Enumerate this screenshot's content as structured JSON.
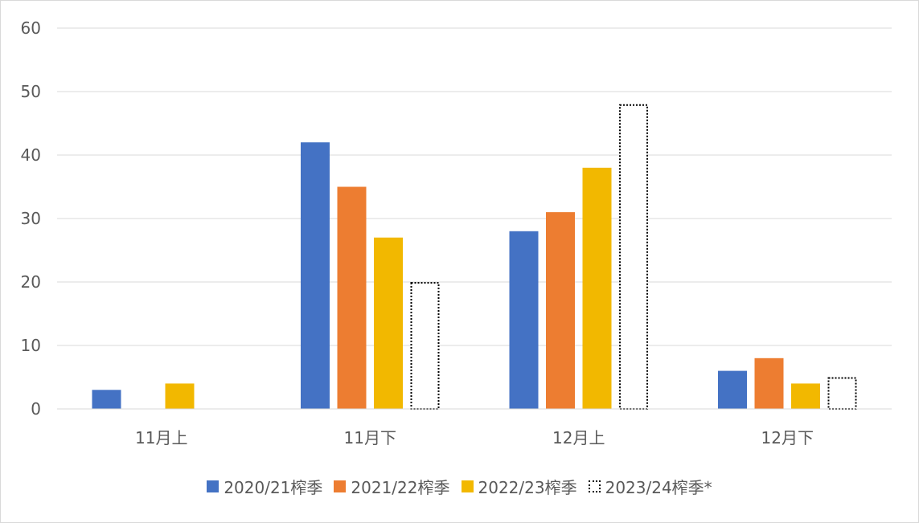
{
  "chart_data": {
    "type": "bar",
    "categories": [
      "11月上",
      "11月下",
      "12月上",
      "12月下"
    ],
    "series": [
      {
        "name": "2020/21榨季",
        "values": [
          3,
          42,
          28,
          6
        ],
        "color": "#4472c4",
        "style": "solid"
      },
      {
        "name": "2021/22榨季",
        "values": [
          null,
          35,
          31,
          8
        ],
        "color": "#ed7d31",
        "style": "solid"
      },
      {
        "name": "2022/23榨季",
        "values": [
          4,
          27,
          38,
          4
        ],
        "color": "#f2b800",
        "style": "solid"
      },
      {
        "name": "2023/24榨季*",
        "values": [
          null,
          20,
          48,
          5
        ],
        "color": "#000000",
        "style": "dotted-outline"
      }
    ],
    "ylim": [
      0,
      60
    ],
    "yticks": [
      "0",
      "10",
      "20",
      "30",
      "40",
      "50",
      "60"
    ],
    "grid": true,
    "legend_position": "bottom"
  }
}
